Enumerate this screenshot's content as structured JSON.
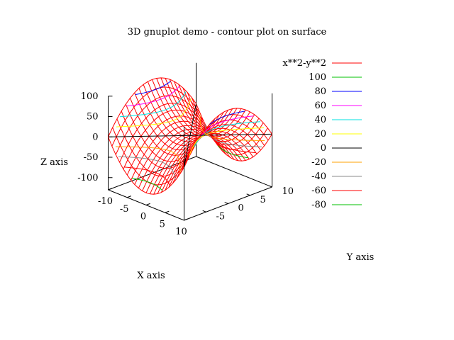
{
  "chart_data": {
    "type": "surface",
    "title": "3D gnuplot demo - contour plot on surface",
    "function": "x**2-y**2",
    "xlabel": "X axis",
    "ylabel": "Y axis",
    "zlabel": "Z axis",
    "xlim": [
      -10,
      10
    ],
    "ylim": [
      -10,
      10
    ],
    "zlim": [
      -100,
      100
    ],
    "x_ticks": [
      "-10",
      "-5",
      "0",
      "5",
      "10"
    ],
    "y_ticks": [
      "-5",
      "0",
      "5",
      "10"
    ],
    "z_ticks": [
      "100",
      "50",
      "0",
      "-50",
      "-100"
    ],
    "grid_samples": 21,
    "legend_position": "top-right",
    "series": [
      {
        "name": "x**2-y**2",
        "level": null,
        "color": "#ff0000"
      },
      {
        "name": "100",
        "level": 100,
        "color": "#00c000"
      },
      {
        "name": "80",
        "level": 80,
        "color": "#0000ff"
      },
      {
        "name": "60",
        "level": 60,
        "color": "#ff00ff"
      },
      {
        "name": "40",
        "level": 40,
        "color": "#00e0e0"
      },
      {
        "name": "20",
        "level": 20,
        "color": "#ffff00"
      },
      {
        "name": "0",
        "level": 0,
        "color": "#000000"
      },
      {
        "name": "-20",
        "level": -20,
        "color": "#ffa000"
      },
      {
        "name": "-40",
        "level": -40,
        "color": "#8a8a8a"
      },
      {
        "name": "-60",
        "level": -60,
        "color": "#ff0000"
      },
      {
        "name": "-80",
        "level": -80,
        "color": "#00c000"
      }
    ]
  }
}
